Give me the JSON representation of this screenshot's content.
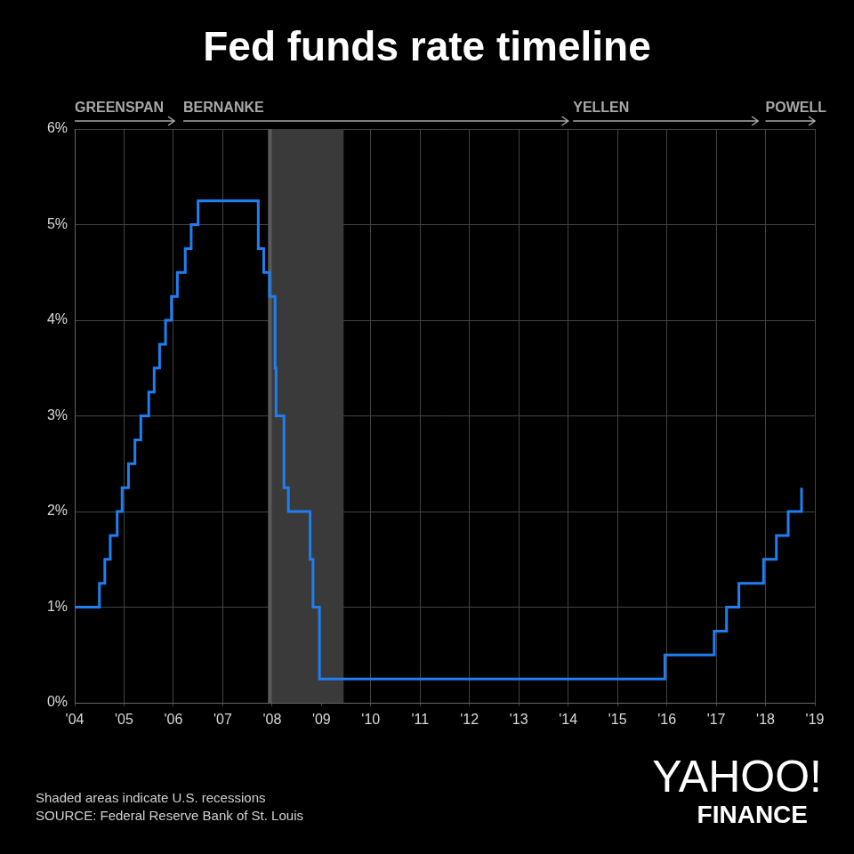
{
  "chart_data": {
    "type": "line",
    "title": "Fed funds rate timeline",
    "x": [
      2004.0,
      2004.5,
      2004.61,
      2004.72,
      2004.86,
      2004.96,
      2005.09,
      2005.22,
      2005.34,
      2005.5,
      2005.61,
      2005.72,
      2005.84,
      2005.96,
      2006.08,
      2006.24,
      2006.36,
      2006.5,
      2007.72,
      2007.83,
      2007.95,
      2008.06,
      2008.08,
      2008.24,
      2008.33,
      2008.77,
      2008.83,
      2008.96,
      2015.96,
      2016.96,
      2017.21,
      2017.46,
      2017.96,
      2018.22,
      2018.46,
      2018.73
    ],
    "values": [
      1.0,
      1.25,
      1.5,
      1.75,
      2.0,
      2.25,
      2.5,
      2.75,
      3.0,
      3.25,
      3.5,
      3.75,
      4.0,
      4.25,
      4.5,
      4.75,
      5.0,
      5.25,
      4.75,
      4.5,
      4.25,
      3.5,
      3.0,
      2.25,
      2.0,
      1.5,
      1.0,
      0.25,
      0.5,
      0.75,
      1.0,
      1.25,
      1.5,
      1.75,
      2.0,
      2.25
    ],
    "color": "#1f7ff2",
    "line_style": "stepped",
    "xlim": [
      2004,
      2019
    ],
    "xticks": [
      {
        "value": 2004,
        "label": "'04"
      },
      {
        "value": 2005,
        "label": "'05"
      },
      {
        "value": 2006,
        "label": "'06"
      },
      {
        "value": 2007,
        "label": "'07"
      },
      {
        "value": 2008,
        "label": "'08"
      },
      {
        "value": 2009,
        "label": "'09"
      },
      {
        "value": 2010,
        "label": "'10"
      },
      {
        "value": 2011,
        "label": "'11"
      },
      {
        "value": 2012,
        "label": "'12"
      },
      {
        "value": 2013,
        "label": "'13"
      },
      {
        "value": 2014,
        "label": "'14"
      },
      {
        "value": 2015,
        "label": "'15"
      },
      {
        "value": 2016,
        "label": "'16"
      },
      {
        "value": 2017,
        "label": "'17"
      },
      {
        "value": 2018,
        "label": "'18"
      },
      {
        "value": 2019,
        "label": "'19"
      }
    ],
    "ylim": [
      0,
      6
    ],
    "yticks": [
      {
        "value": 0,
        "label": "0%"
      },
      {
        "value": 1,
        "label": "1%"
      },
      {
        "value": 2,
        "label": "2%"
      },
      {
        "value": 3,
        "label": "3%"
      },
      {
        "value": 4,
        "label": "4%"
      },
      {
        "value": 5,
        "label": "5%"
      },
      {
        "value": 6,
        "label": "6%"
      }
    ],
    "grid": true,
    "recessions": [
      {
        "start": 2007.92,
        "end": 2009.45
      }
    ],
    "chairs": [
      {
        "name": "GREENSPAN",
        "start": 2004,
        "end": 2006.02
      },
      {
        "name": "BERNANKE",
        "start": 2006.2,
        "end": 2014.0
      },
      {
        "name": "YELLEN",
        "start": 2014.1,
        "end": 2017.85
      },
      {
        "name": "POWELL",
        "start": 2018.0,
        "end": 2019
      }
    ],
    "notes": [
      "Shaded areas indicate U.S. recessions",
      "SOURCE: Federal Reserve Bank of St. Louis"
    ],
    "logo": [
      "YAHOO!",
      "FINANCE"
    ]
  }
}
